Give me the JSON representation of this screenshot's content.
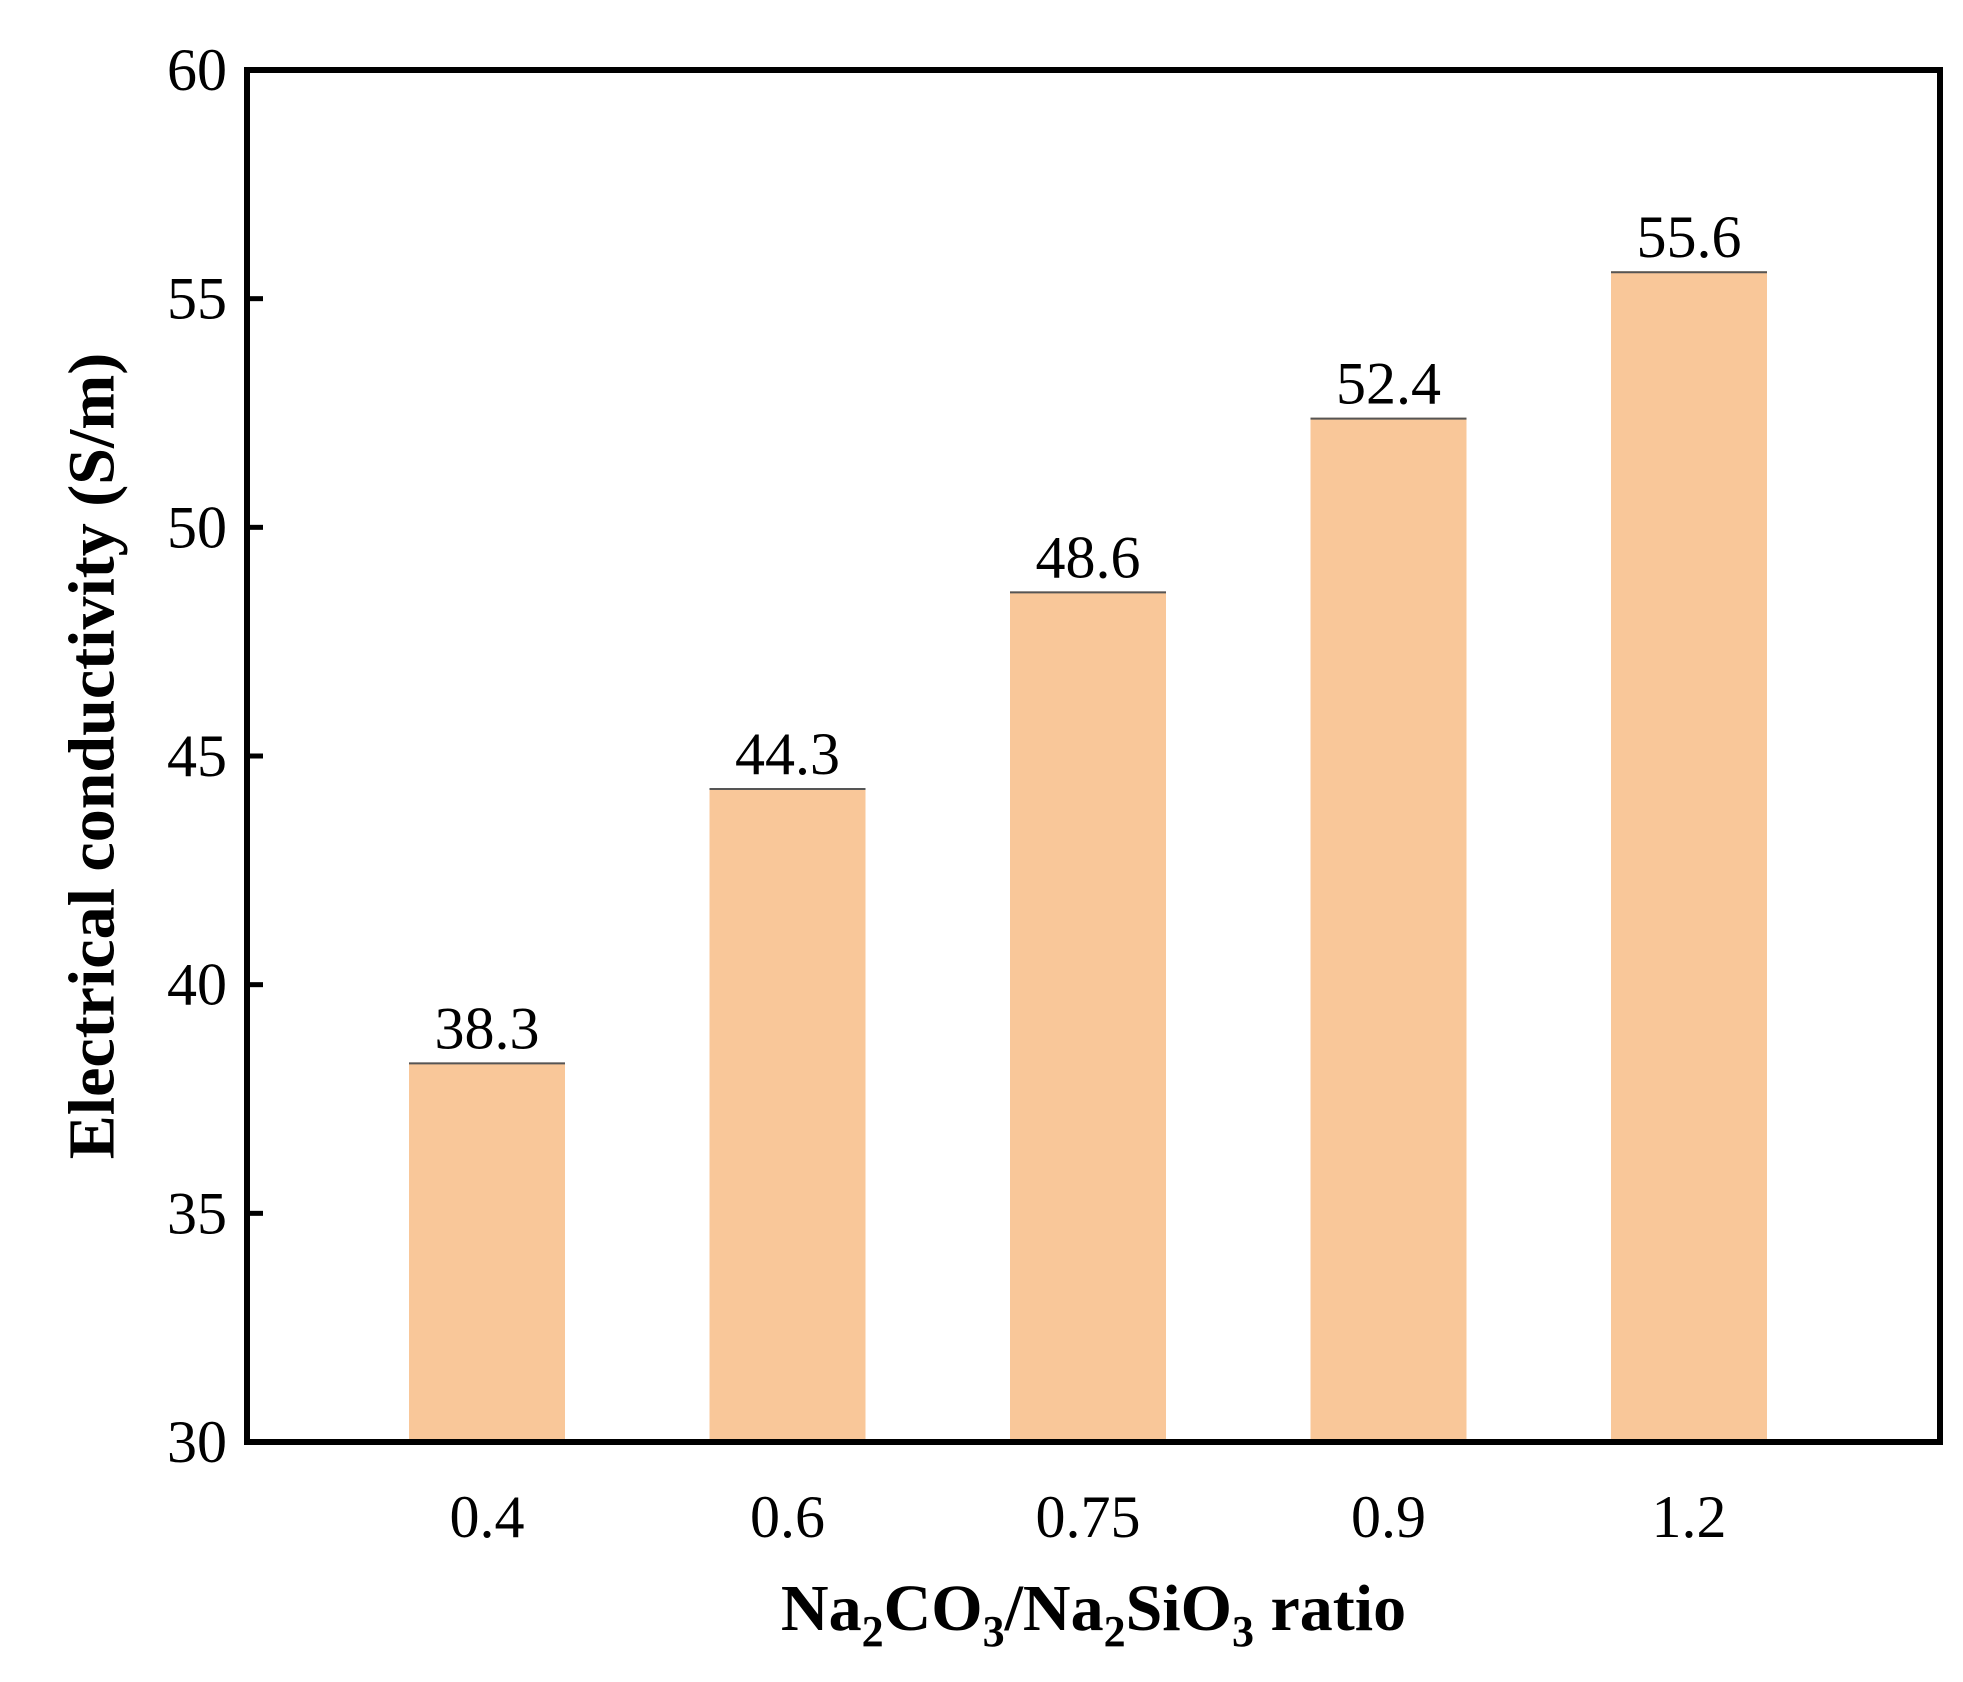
{
  "chart_data": {
    "type": "bar",
    "categories": [
      "0.4",
      "0.6",
      "0.75",
      "0.9",
      "1.2"
    ],
    "values": [
      38.3,
      44.3,
      48.6,
      52.4,
      55.6
    ],
    "data_labels": [
      "38.3",
      "44.3",
      "48.6",
      "52.4",
      "55.6"
    ],
    "title": "",
    "xlabel": {
      "parts": [
        {
          "text": "Na",
          "sub": false
        },
        {
          "text": "2",
          "sub": true
        },
        {
          "text": "CO",
          "sub": false
        },
        {
          "text": "3",
          "sub": true
        },
        {
          "text": "/Na",
          "sub": false
        },
        {
          "text": "2",
          "sub": true
        },
        {
          "text": "SiO",
          "sub": false
        },
        {
          "text": "3",
          "sub": true
        },
        {
          "text": " ratio",
          "sub": false
        }
      ]
    },
    "ylabel": "Electrical conductivity (S/m)",
    "ylim": [
      30,
      60
    ],
    "yticks": [
      30,
      35,
      40,
      45,
      50,
      55,
      60
    ],
    "grid": false,
    "legend": "none",
    "bar_color": "#f9c799",
    "axis_color": "#000000"
  }
}
